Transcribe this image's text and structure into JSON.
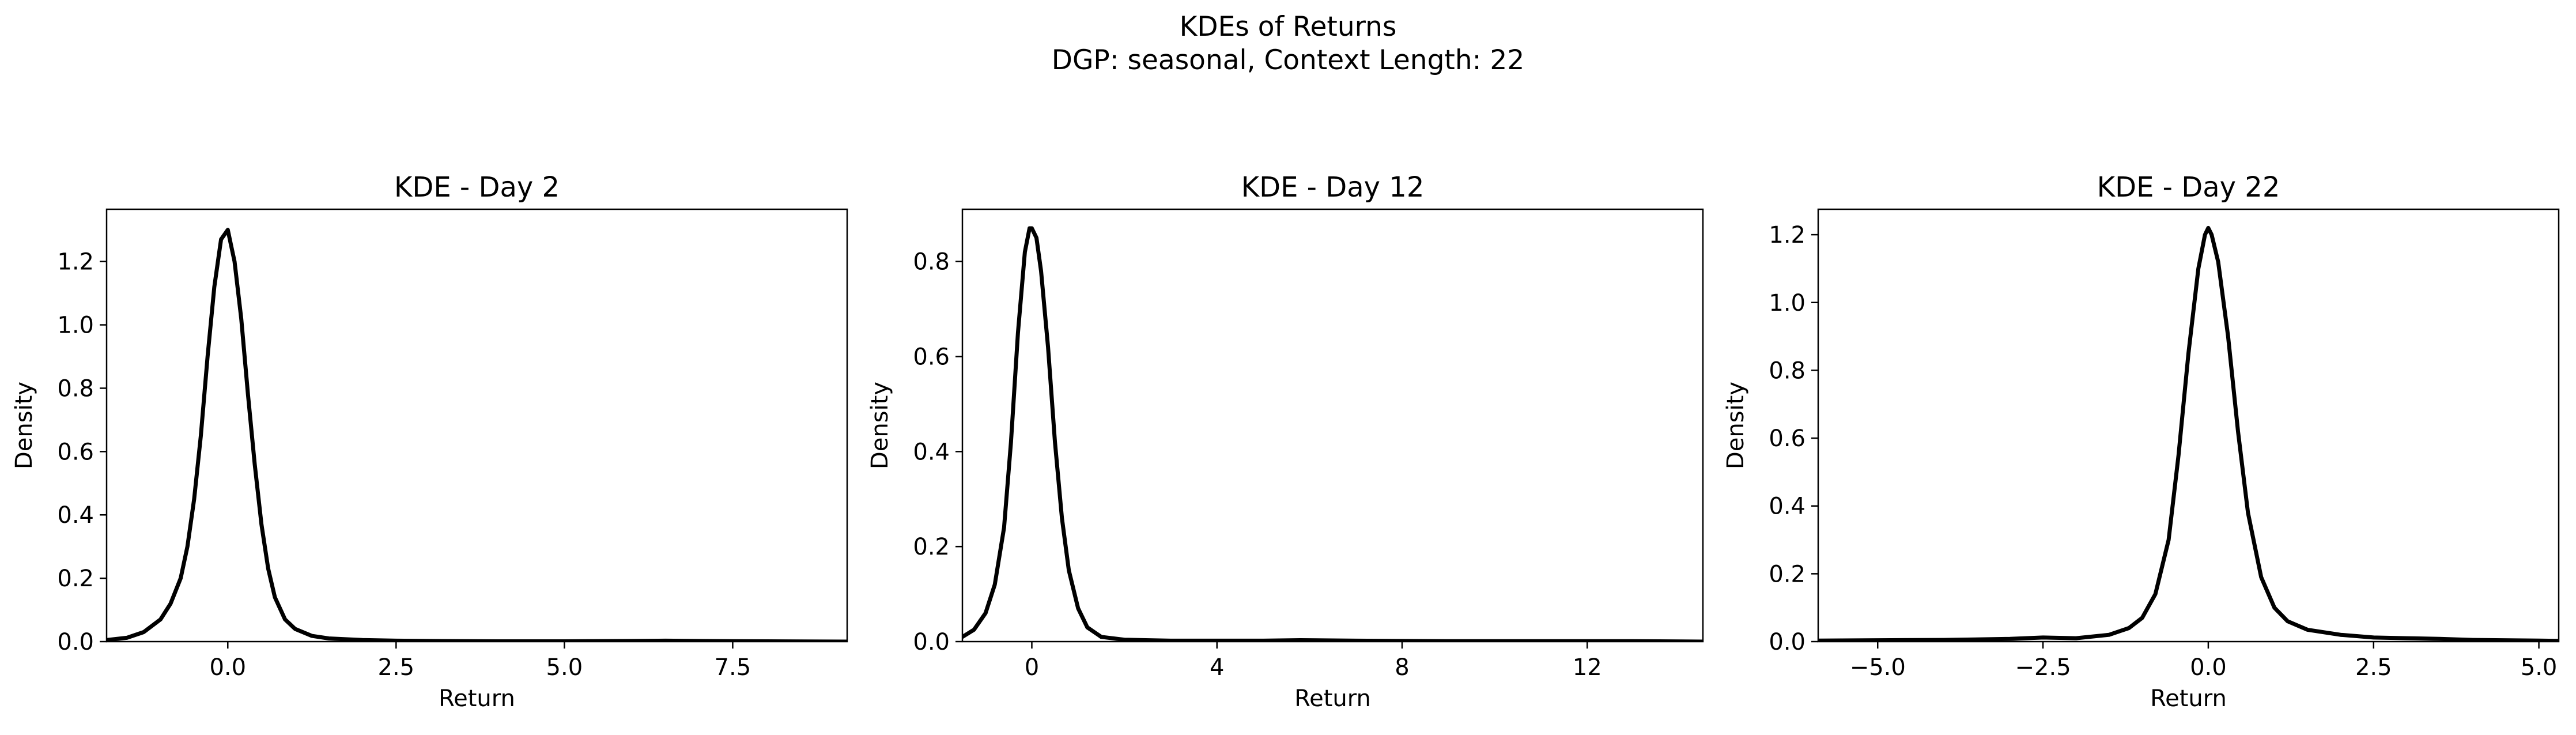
{
  "figure": {
    "suptitle": "KDEs of Returns",
    "subtitle": "DGP: seasonal, Context Length: 22"
  },
  "chart_data": [
    {
      "type": "line",
      "title": "KDE - Day 2",
      "xlabel": "Return",
      "ylabel": "Density",
      "xlim": [
        -1.8,
        9.2
      ],
      "ylim": [
        0,
        1.365
      ],
      "xticks": [
        0.0,
        2.5,
        5.0,
        7.5
      ],
      "xtick_labels": [
        "0.0",
        "2.5",
        "5.0",
        "7.5"
      ],
      "yticks": [
        0.0,
        0.2,
        0.4,
        0.6,
        0.8,
        1.0,
        1.2
      ],
      "ytick_labels": [
        "0.0",
        "0.2",
        "0.4",
        "0.6",
        "0.8",
        "1.0",
        "1.2"
      ],
      "color": "#000000",
      "x": [
        -1.8,
        -1.5,
        -1.25,
        -1.0,
        -0.85,
        -0.7,
        -0.6,
        -0.5,
        -0.4,
        -0.3,
        -0.2,
        -0.1,
        0.0,
        0.05,
        0.1,
        0.2,
        0.3,
        0.4,
        0.5,
        0.6,
        0.7,
        0.85,
        1.0,
        1.25,
        1.5,
        2.0,
        2.5,
        3.0,
        4.0,
        5.0,
        6.0,
        6.5,
        7.0,
        8.0,
        9.2
      ],
      "y": [
        0.005,
        0.012,
        0.03,
        0.07,
        0.12,
        0.2,
        0.3,
        0.45,
        0.65,
        0.9,
        1.12,
        1.27,
        1.3,
        1.25,
        1.2,
        1.02,
        0.78,
        0.56,
        0.37,
        0.23,
        0.14,
        0.07,
        0.04,
        0.018,
        0.01,
        0.005,
        0.003,
        0.002,
        0.001,
        0.001,
        0.002,
        0.003,
        0.002,
        0.001,
        0.0
      ]
    },
    {
      "type": "line",
      "title": "KDE - Day 12",
      "xlabel": "Return",
      "ylabel": "Density",
      "xlim": [
        -1.5,
        14.5
      ],
      "ylim": [
        0,
        0.91
      ],
      "xticks": [
        0,
        4,
        8,
        12
      ],
      "xtick_labels": [
        "0",
        "4",
        "8",
        "12"
      ],
      "yticks": [
        0.0,
        0.2,
        0.4,
        0.6,
        0.8
      ],
      "ytick_labels": [
        "0.0",
        "0.2",
        "0.4",
        "0.6",
        "0.8"
      ],
      "color": "#000000",
      "x": [
        -1.5,
        -1.25,
        -1.0,
        -0.8,
        -0.6,
        -0.45,
        -0.3,
        -0.15,
        -0.05,
        0.0,
        0.1,
        0.2,
        0.35,
        0.5,
        0.65,
        0.8,
        1.0,
        1.2,
        1.5,
        2.0,
        3.0,
        4.0,
        5.0,
        5.8,
        7.0,
        9.0,
        11.0,
        13.0,
        14.5
      ],
      "y": [
        0.01,
        0.025,
        0.06,
        0.12,
        0.24,
        0.42,
        0.65,
        0.82,
        0.87,
        0.87,
        0.85,
        0.78,
        0.62,
        0.42,
        0.26,
        0.15,
        0.07,
        0.03,
        0.01,
        0.004,
        0.002,
        0.002,
        0.002,
        0.003,
        0.002,
        0.001,
        0.001,
        0.001,
        0.0
      ]
    },
    {
      "type": "line",
      "title": "KDE - Day 22",
      "xlabel": "Return",
      "ylabel": "Density",
      "xlim": [
        -5.9,
        5.3
      ],
      "ylim": [
        0,
        1.275
      ],
      "xticks": [
        -5.0,
        -2.5,
        0.0,
        2.5,
        5.0
      ],
      "xtick_labels": [
        "−5.0",
        "−2.5",
        "0.0",
        "2.5",
        "5.0"
      ],
      "yticks": [
        0.0,
        0.2,
        0.4,
        0.6,
        0.8,
        1.0,
        1.2
      ],
      "ytick_labels": [
        "0.0",
        "0.2",
        "0.4",
        "0.6",
        "0.8",
        "1.0",
        "1.2"
      ],
      "color": "#000000",
      "x": [
        -5.9,
        -5.0,
        -4.0,
        -3.0,
        -2.5,
        -2.0,
        -1.5,
        -1.2,
        -1.0,
        -0.8,
        -0.6,
        -0.45,
        -0.3,
        -0.15,
        -0.05,
        0.0,
        0.05,
        0.15,
        0.3,
        0.45,
        0.6,
        0.8,
        1.0,
        1.2,
        1.5,
        2.0,
        2.5,
        3.0,
        3.5,
        4.0,
        5.0,
        5.3
      ],
      "y": [
        0.003,
        0.004,
        0.005,
        0.008,
        0.012,
        0.01,
        0.02,
        0.04,
        0.07,
        0.14,
        0.3,
        0.55,
        0.85,
        1.1,
        1.2,
        1.22,
        1.2,
        1.12,
        0.9,
        0.62,
        0.38,
        0.19,
        0.1,
        0.06,
        0.035,
        0.02,
        0.012,
        0.01,
        0.008,
        0.005,
        0.003,
        0.002
      ]
    }
  ]
}
